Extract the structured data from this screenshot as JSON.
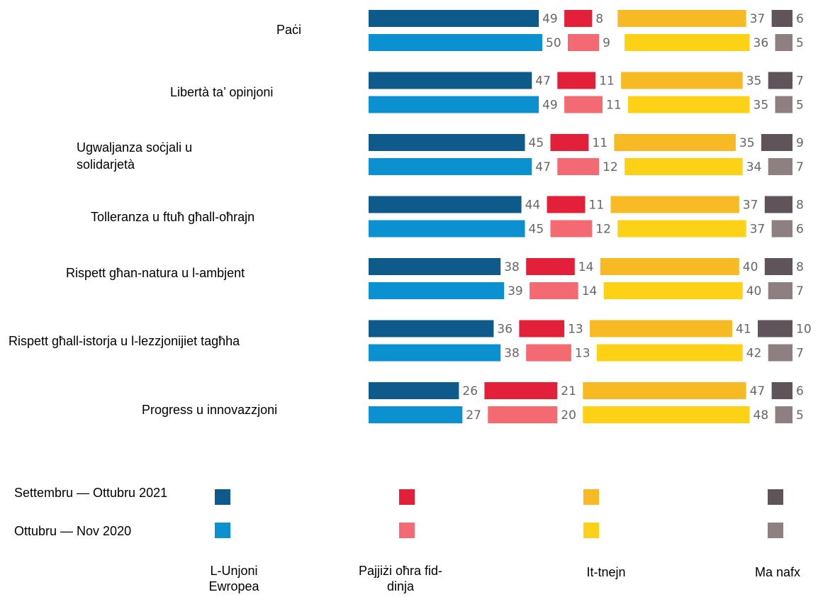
{
  "chart_data": {
    "type": "bar",
    "orientation": "horizontal",
    "stacked": true,
    "categories": [
      "Paċi",
      "Libertà ta’ opinjoni",
      "Ugwaljanza soċjali u solidarjetà",
      "Tolleranza u ftuħ għall-oħrajn",
      "Rispett għan-natura u l-ambjent",
      "Rispett għall-istorja u l-lezzjonijiet tagħha",
      "Progress u innovazzjoni"
    ],
    "periods": [
      "Settembru — Ottubru 2021",
      "Ottubru — Nov 2020"
    ],
    "series": [
      {
        "name": "L-Unjoni Ewropea",
        "colors": [
          "#0e5a8a",
          "#0b90d0"
        ],
        "values": [
          [
            49,
            50
          ],
          [
            47,
            49
          ],
          [
            45,
            47
          ],
          [
            44,
            45
          ],
          [
            38,
            39
          ],
          [
            36,
            38
          ],
          [
            26,
            27
          ]
        ]
      },
      {
        "name": "Pajjiżi oħra fid-dinja",
        "colors": [
          "#e3203a",
          "#f46a72"
        ],
        "values": [
          [
            8,
            9
          ],
          [
            11,
            11
          ],
          [
            11,
            12
          ],
          [
            11,
            12
          ],
          [
            14,
            14
          ],
          [
            13,
            13
          ],
          [
            21,
            20
          ]
        ]
      },
      {
        "name": "It-tnejn",
        "colors": [
          "#f7b924",
          "#fcd116"
        ],
        "values": [
          [
            37,
            36
          ],
          [
            35,
            35
          ],
          [
            35,
            34
          ],
          [
            37,
            37
          ],
          [
            40,
            40
          ],
          [
            41,
            42
          ],
          [
            47,
            48
          ]
        ]
      },
      {
        "name": "Ma nafx",
        "colors": [
          "#5e545a",
          "#8e7f80"
        ],
        "values": [
          [
            6,
            5
          ],
          [
            7,
            5
          ],
          [
            9,
            7
          ],
          [
            8,
            6
          ],
          [
            8,
            7
          ],
          [
            10,
            7
          ],
          [
            6,
            5
          ]
        ]
      }
    ]
  }
}
